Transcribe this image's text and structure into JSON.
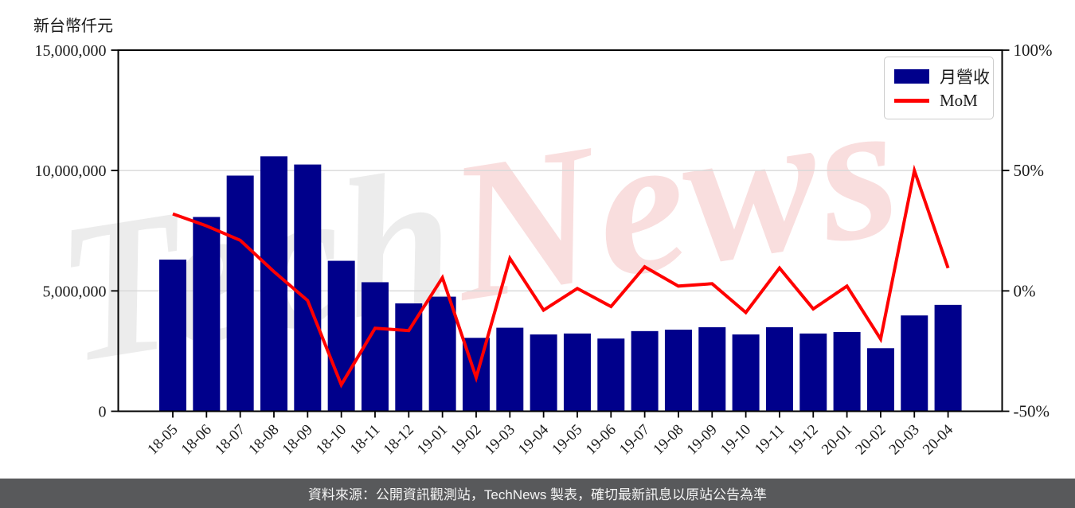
{
  "footer": {
    "text": "資料來源：公開資訊觀測站，TechNews 製表，確切最新訊息以原站公告為準"
  },
  "watermark": {
    "part1": "Tech",
    "part2": "News"
  },
  "colors": {
    "bar": "#00008b",
    "line": "#ff0000",
    "grid": "#d8d8d8",
    "spine": "#000000",
    "watermark_gray": "#ececec",
    "watermark_pink": "#f9dede",
    "footer_bg": "#58595b"
  },
  "chart_data": {
    "type": "bar+line combo",
    "categories": [
      "18-05",
      "18-06",
      "18-07",
      "18-08",
      "18-09",
      "18-10",
      "18-11",
      "18-12",
      "19-01",
      "19-02",
      "19-03",
      "19-04",
      "19-05",
      "19-06",
      "19-07",
      "19-08",
      "19-09",
      "19-10",
      "19-11",
      "19-12",
      "20-01",
      "20-02",
      "20-03",
      "20-04"
    ],
    "series": [
      {
        "name": "月營收",
        "type": "bar",
        "axis": "left",
        "values": [
          6300000,
          8070000,
          9790000,
          10590000,
          10250000,
          6250000,
          5360000,
          4480000,
          4760000,
          3050000,
          3470000,
          3190000,
          3230000,
          3020000,
          3330000,
          3390000,
          3490000,
          3190000,
          3490000,
          3230000,
          3290000,
          2620000,
          3980000,
          4420000
        ]
      },
      {
        "name": "MoM",
        "type": "line",
        "axis": "right",
        "values": [
          32,
          27,
          21,
          8,
          -4,
          -39,
          -15.5,
          -16.5,
          5.5,
          -36,
          13.5,
          -8,
          1,
          -6.5,
          10,
          2,
          3,
          -9,
          9.5,
          -7.5,
          2,
          -20,
          50,
          9.5
        ]
      }
    ],
    "left_axis": {
      "label": "新台幣仟元",
      "ticks": [
        "0",
        "5,000,000",
        "10,000,000",
        "15,000,000"
      ],
      "tick_values": [
        0,
        5000000,
        10000000,
        15000000
      ],
      "range": [
        0,
        15000000
      ]
    },
    "right_axis": {
      "ticks": [
        "-50%",
        "0%",
        "50%",
        "100%"
      ],
      "tick_values": [
        -50,
        0,
        50,
        100
      ],
      "range": [
        -50,
        100
      ]
    },
    "legend_position": "upper right",
    "grid": "horizontal gridlines at inner y-ticks"
  }
}
